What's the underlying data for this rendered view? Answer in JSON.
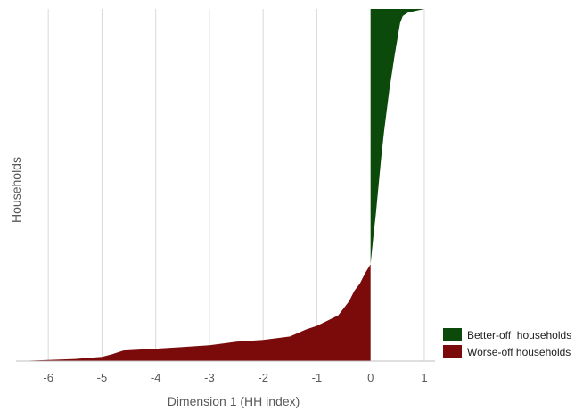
{
  "chart_data": {
    "type": "area",
    "title": "",
    "xlabel": "Dimension 1 (HH index)",
    "ylabel": "Households",
    "xlim": [
      -6.6,
      1.2
    ],
    "xticks": [
      {
        "value": -6,
        "label": "-6"
      },
      {
        "value": -5,
        "label": "-5"
      },
      {
        "value": -4,
        "label": "-4"
      },
      {
        "value": -3,
        "label": "-3"
      },
      {
        "value": -2,
        "label": "-2"
      },
      {
        "value": -1,
        "label": "-1"
      },
      {
        "value": 0,
        "label": "0"
      },
      {
        "value": 1,
        "label": "1"
      }
    ],
    "grid": true,
    "legend_position": "bottom-right",
    "series": [
      {
        "name": "Better-off  households",
        "color": "#0b4a0b",
        "points": [
          [
            0.0,
            0.275
          ],
          [
            0.05,
            0.35
          ],
          [
            0.1,
            0.42
          ],
          [
            0.15,
            0.5
          ],
          [
            0.2,
            0.58
          ],
          [
            0.25,
            0.65
          ],
          [
            0.3,
            0.71
          ],
          [
            0.35,
            0.77
          ],
          [
            0.4,
            0.82
          ],
          [
            0.45,
            0.87
          ],
          [
            0.5,
            0.915
          ],
          [
            0.55,
            0.96
          ],
          [
            0.6,
            0.98
          ],
          [
            0.7,
            0.99
          ],
          [
            0.85,
            0.995
          ],
          [
            1.0,
            1.0
          ],
          [
            1.2,
            1.0
          ]
        ]
      },
      {
        "name": "Worse-off households",
        "color": "#7b0a0a",
        "points": [
          [
            -6.6,
            0.0
          ],
          [
            -6.0,
            0.003
          ],
          [
            -5.5,
            0.006
          ],
          [
            -5.0,
            0.012
          ],
          [
            -4.8,
            0.02
          ],
          [
            -4.6,
            0.03
          ],
          [
            -4.0,
            0.035
          ],
          [
            -3.5,
            0.04
          ],
          [
            -3.0,
            0.045
          ],
          [
            -2.5,
            0.055
          ],
          [
            -2.0,
            0.06
          ],
          [
            -1.5,
            0.07
          ],
          [
            -1.2,
            0.09
          ],
          [
            -1.0,
            0.1
          ],
          [
            -0.8,
            0.115
          ],
          [
            -0.6,
            0.13
          ],
          [
            -0.5,
            0.15
          ],
          [
            -0.4,
            0.17
          ],
          [
            -0.3,
            0.2
          ],
          [
            -0.2,
            0.22
          ],
          [
            -0.1,
            0.25
          ],
          [
            0.0,
            0.275
          ]
        ]
      }
    ]
  }
}
